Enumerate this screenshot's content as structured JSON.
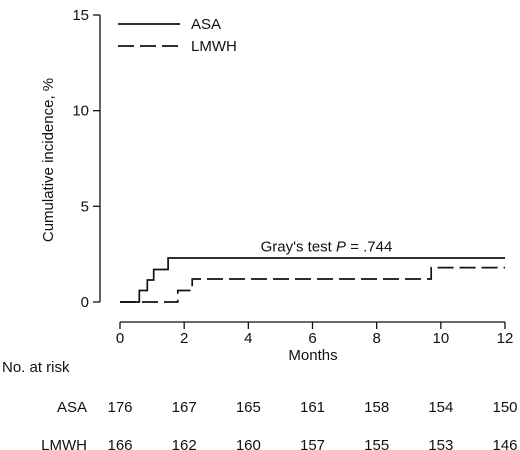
{
  "chart_data": {
    "type": "line",
    "title": "",
    "xlabel": "Months",
    "ylabel": "Cumulative incidence, %",
    "xlim": [
      0,
      12
    ],
    "ylim": [
      0,
      15
    ],
    "x_ticks": [
      0,
      2,
      4,
      6,
      8,
      10,
      12
    ],
    "y_ticks": [
      0,
      5,
      10,
      15
    ],
    "grid": false,
    "legend": "top-left",
    "annotation": {
      "prefix": "Gray's test ",
      "italic": "P",
      "suffix": " = .744",
      "x": 6,
      "y": 2.9
    },
    "series": [
      {
        "name": "ASA",
        "style": "solid",
        "color": "#111111",
        "steps": [
          [
            0,
            0
          ],
          [
            0.6,
            0
          ],
          [
            0.6,
            0.6
          ],
          [
            0.85,
            0.6
          ],
          [
            0.85,
            1.15
          ],
          [
            1.05,
            1.15
          ],
          [
            1.05,
            1.7
          ],
          [
            1.5,
            1.7
          ],
          [
            1.5,
            2.3
          ],
          [
            12,
            2.3
          ]
        ]
      },
      {
        "name": "LMWH",
        "style": "dashed",
        "color": "#111111",
        "steps": [
          [
            0,
            0
          ],
          [
            1.8,
            0
          ],
          [
            1.8,
            0.6
          ],
          [
            2.25,
            0.6
          ],
          [
            2.25,
            1.2
          ],
          [
            9.7,
            1.2
          ],
          [
            9.7,
            1.8
          ],
          [
            12,
            1.8
          ]
        ]
      }
    ],
    "risk_table": {
      "header": "No. at risk",
      "rows": [
        {
          "label": "ASA",
          "values": [
            176,
            167,
            165,
            161,
            158,
            154,
            150
          ]
        },
        {
          "label": "LMWH",
          "values": [
            166,
            162,
            160,
            157,
            155,
            153,
            146
          ]
        }
      ]
    }
  }
}
